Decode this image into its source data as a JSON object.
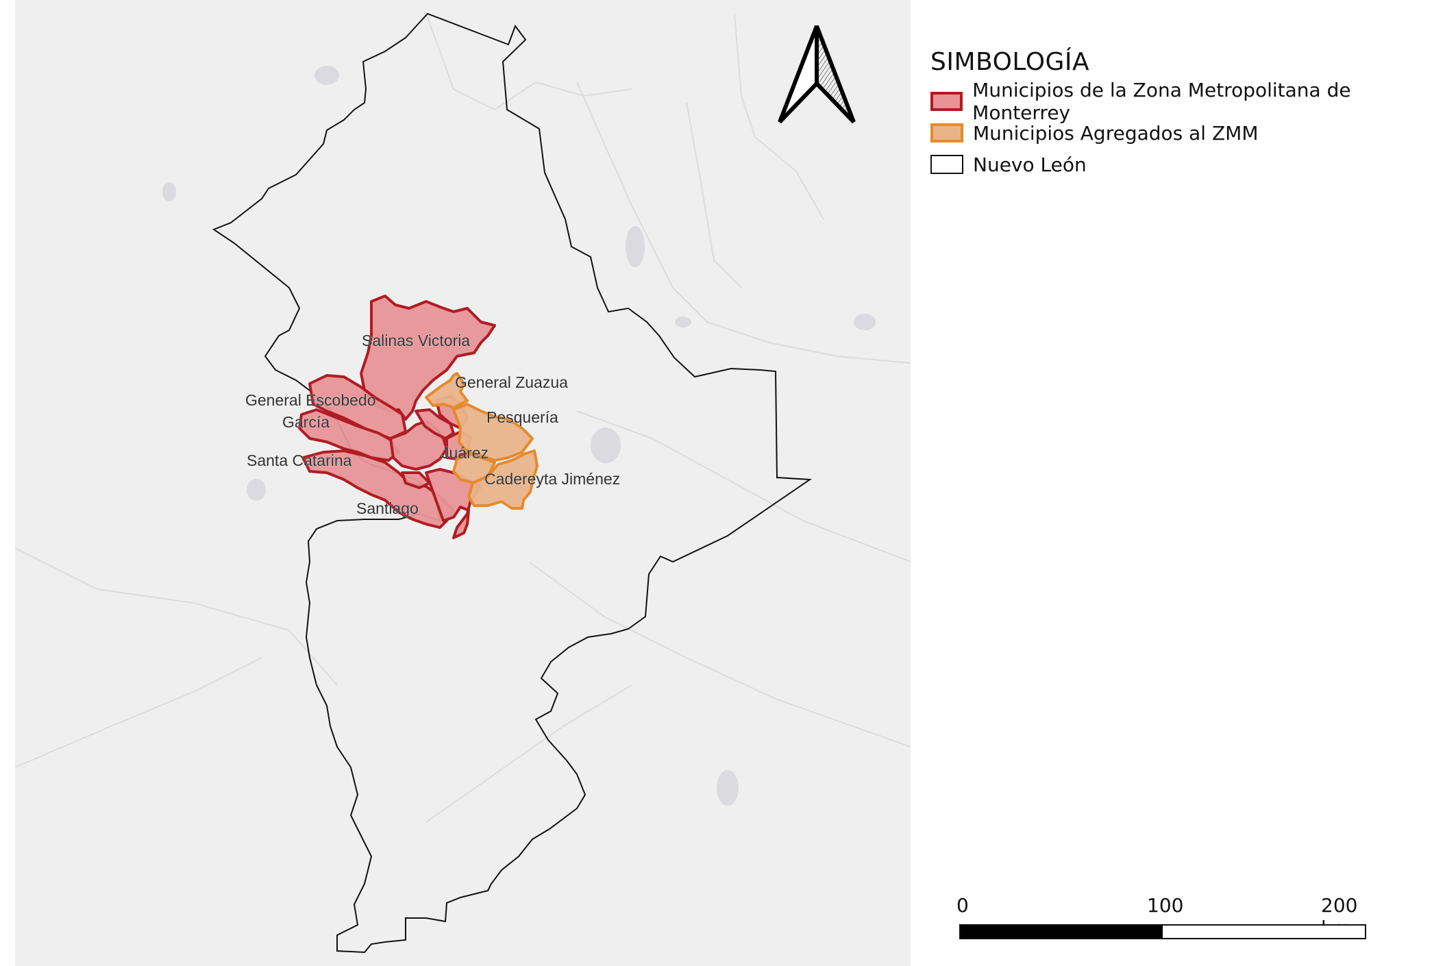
{
  "legend": {
    "title": "SIMBOLOGÍA",
    "items": [
      {
        "label": "Municipios de la Zona Metropolitana de Monterrey",
        "fill": "#e79497",
        "stroke": "#b01c24"
      },
      {
        "label": "Municipios Agregados al ZMM",
        "fill": "#e9b48a",
        "stroke": "#e58a2d"
      },
      {
        "label": "Nuevo León",
        "fill": "#ffffff",
        "stroke": "#111111"
      }
    ]
  },
  "scale_bar": {
    "ticks": [
      "0",
      "100",
      "200 km"
    ]
  },
  "map": {
    "background": "#efefef",
    "labels": {
      "salinas_victoria": "Salinas Victoria",
      "general_zuazua": "General Zuazua",
      "general_escobedo": "General Escobedo",
      "garcia": "García",
      "pesqueria": "Pesquería",
      "santa_catarina": "Santa Catarina",
      "juarez": "Juárez",
      "cadereyta": "Cadereyta Jiménez",
      "santiago": "Santiago"
    }
  },
  "icons": {
    "north_arrow": "north-arrow-icon"
  }
}
